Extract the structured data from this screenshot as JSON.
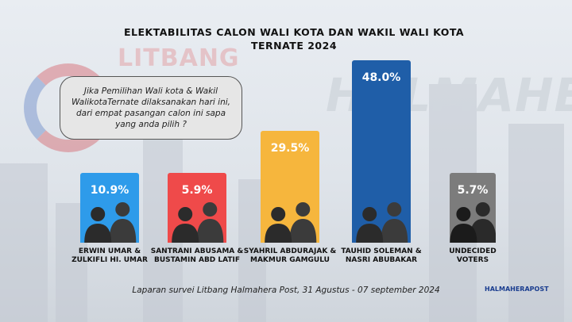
{
  "title_line1": "ELEKTABILITAS CALON WALI KOTA DAN WAKIL WALI KOTA",
  "title_line2": "TERNATE 2024",
  "watermark_left": "LITBANG",
  "watermark_right": "HALMAHERAPOST",
  "question": "Jika Pemilihan Wali kota & Wakil WalikotaTernate dilaksanakan hari ini, dari empat pasangan calon ini sapa yang anda pilih ?",
  "footer": "Laparan survei Litbang Halmahera Post, 31 Agustus - 07 september 2024",
  "logo_text": "HALMAHERAPOST",
  "chart_data": {
    "type": "bar",
    "title": "ELEKTABILITAS CALON WALI KOTA DAN WAKIL WALI KOTA TERNATE 2024",
    "categories": [
      [
        "ERWIN UMAR &",
        "ZULKIFLI HI. UMAR"
      ],
      [
        "SANTRANI ABUSAMA &",
        "BUSTAMIN ABD LATIF"
      ],
      [
        "SYAHRIL ABDURAJAK &",
        "MAKMUR GAMGULU"
      ],
      [
        "TAUHID SOLEMAN &",
        "NASRI ABUBAKAR"
      ],
      [
        "UNDECIDED",
        "VOTERS"
      ]
    ],
    "values": [
      10.9,
      5.9,
      29.5,
      48.0,
      5.7
    ],
    "value_labels": [
      "10.9%",
      "5.9%",
      "29.5%",
      "48.0%",
      "5.7%"
    ],
    "colors": [
      "#2e9bea",
      "#ef4a4a",
      "#f6b63d",
      "#1f5ea8",
      "#7c7c7c"
    ],
    "ylim": [
      0,
      48.0
    ]
  }
}
